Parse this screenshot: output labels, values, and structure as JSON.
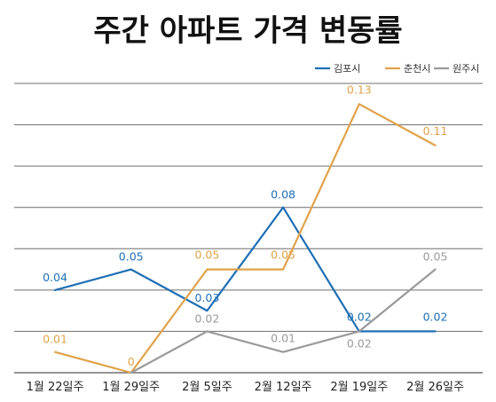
{
  "chart_data": {
    "type": "line",
    "title": "주간 아파트 가격 변동률",
    "xlabel": "",
    "ylabel": "",
    "categories": [
      "1월 22일주",
      "1월 29일주",
      "2월 5일주",
      "2월 12일주",
      "2월 19일주",
      "2월 26일주"
    ],
    "series": [
      {
        "name": "김포시",
        "color": "#1f6fb5",
        "values": [
          0.04,
          0.05,
          0.03,
          0.08,
          0.02,
          0.02
        ],
        "labels": [
          "0.04",
          "0.05",
          "0.03",
          "0.08",
          "0.02",
          "0.02"
        ]
      },
      {
        "name": "춘천시",
        "color": "#e0a24a",
        "values": [
          0.01,
          0.0,
          0.05,
          0.05,
          0.13,
          0.11
        ],
        "labels": [
          "0.01",
          "0",
          "0.05",
          "0.05",
          "0.13",
          "0.11"
        ]
      },
      {
        "name": "원주시",
        "color": "#9a9a9a",
        "values": [
          null,
          0.0,
          0.02,
          0.01,
          0.02,
          0.05
        ],
        "labels": [
          "",
          "",
          "0.02",
          "0.01",
          "0.02",
          "0.05"
        ]
      }
    ],
    "ylim": [
      0,
      0.14
    ],
    "grid": true,
    "legend_position": "top-right"
  }
}
